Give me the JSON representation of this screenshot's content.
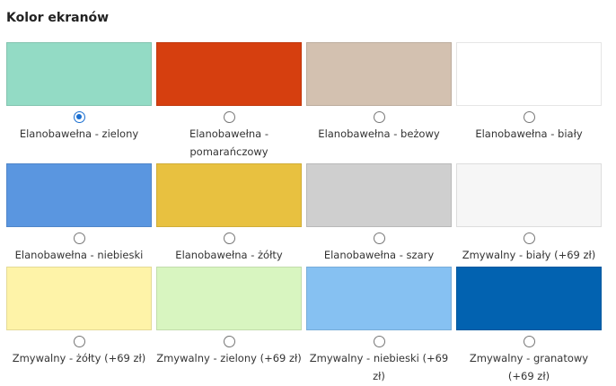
{
  "title": "Kolor ekranów",
  "selected": 0,
  "options": [
    {
      "label": "Elanobawełna - zielony",
      "color": "#93dbc5"
    },
    {
      "label": "Elanobawełna - pomarańczowy",
      "color": "#d63f0f"
    },
    {
      "label": "Elanobawełna - beżowy",
      "color": "#d3c1b0"
    },
    {
      "label": "Elanobawełna - biały",
      "color": "#ffffff"
    },
    {
      "label": "Elanobawełna - niebieski",
      "color": "#5a96e0"
    },
    {
      "label": "Elanobawełna - żółty",
      "color": "#e8c140"
    },
    {
      "label": "Elanobawełna - szary",
      "color": "#cfcfcf"
    },
    {
      "label": "Zmywalny - biały (+69 zł)",
      "color": "#f6f6f6"
    },
    {
      "label": "Zmywalny - żółty (+69 zł)",
      "color": "#fef3a8"
    },
    {
      "label": "Zmywalny - zielony (+69 zł)",
      "color": "#d8f5c0"
    },
    {
      "label": "Zmywalny - niebieski (+69 zł)",
      "color": "#86c1f2"
    },
    {
      "label": "Zmywalny - granatowy (+69 zł)",
      "color": "#0262b0"
    }
  ]
}
